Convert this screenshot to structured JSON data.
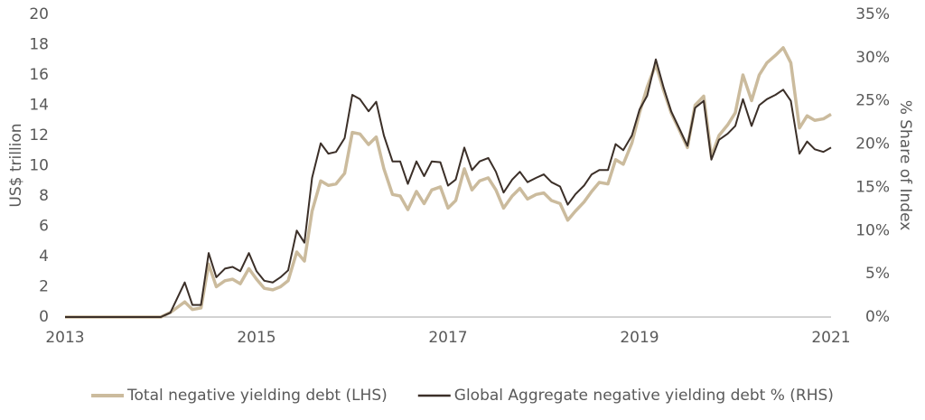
{
  "chart_data": {
    "type": "line",
    "y_label": "US$ trillion",
    "y2_label": "% Share of Index",
    "x": [
      2013,
      2013.5,
      2014,
      2014.1,
      2014.25,
      2014.33,
      2014.42,
      2014.5,
      2014.58,
      2014.67,
      2014.75,
      2014.83,
      2014.92,
      2015,
      2015.08,
      2015.17,
      2015.25,
      2015.33,
      2015.42,
      2015.5,
      2015.58,
      2015.67,
      2015.75,
      2015.83,
      2015.92,
      2016,
      2016.08,
      2016.17,
      2016.25,
      2016.33,
      2016.42,
      2016.5,
      2016.58,
      2016.67,
      2016.75,
      2016.83,
      2016.92,
      2017,
      2017.08,
      2017.17,
      2017.25,
      2017.33,
      2017.42,
      2017.5,
      2017.58,
      2017.67,
      2017.75,
      2017.83,
      2017.92,
      2018,
      2018.08,
      2018.17,
      2018.25,
      2018.33,
      2018.42,
      2018.5,
      2018.58,
      2018.67,
      2018.75,
      2018.83,
      2018.92,
      2019,
      2019.08,
      2019.17,
      2019.25,
      2019.33,
      2019.42,
      2019.5,
      2019.58,
      2019.67,
      2019.75,
      2019.83,
      2019.92,
      2020,
      2020.08,
      2020.17,
      2020.25,
      2020.33,
      2020.42,
      2020.5,
      2020.58,
      2020.67,
      2020.75,
      2020.83,
      2020.92,
      2021
    ],
    "series": [
      {
        "name": "Total negative yielding debt (LHS)",
        "color": "#cbbb9d",
        "values": [
          0,
          0,
          0,
          0.3,
          1.0,
          0.5,
          0.6,
          3.5,
          2.0,
          2.4,
          2.5,
          2.2,
          3.2,
          2.5,
          1.9,
          1.8,
          2.0,
          2.4,
          4.3,
          3.7,
          7.0,
          9.0,
          8.7,
          8.8,
          9.5,
          12.2,
          12.1,
          11.4,
          11.9,
          9.8,
          8.1,
          8.0,
          7.1,
          8.3,
          7.5,
          8.4,
          8.6,
          7.2,
          7.7,
          9.8,
          8.4,
          9.0,
          9.2,
          8.4,
          7.2,
          8.0,
          8.5,
          7.8,
          8.1,
          8.2,
          7.7,
          7.5,
          6.4,
          7.0,
          7.6,
          8.3,
          8.9,
          8.8,
          10.4,
          10.1,
          11.5,
          13.5,
          15.2,
          16.7,
          15.0,
          13.5,
          12.3,
          11.2,
          14.0,
          14.6,
          10.6,
          12.0,
          12.7,
          13.5,
          16.0,
          14.3,
          16.0,
          16.8,
          17.3,
          17.8,
          16.8,
          12.5,
          13.3,
          13.0,
          13.1,
          13.4
        ]
      },
      {
        "name": "Global Aggregate negative yielding debt % (RHS)",
        "color": "#3b2f28",
        "axis": "y2",
        "values": [
          0,
          0,
          0,
          0.5,
          4.0,
          1.4,
          1.4,
          7.4,
          4.6,
          5.6,
          5.8,
          5.3,
          7.4,
          5.3,
          4.2,
          4.0,
          4.6,
          5.4,
          10.0,
          8.6,
          16.1,
          20.1,
          18.9,
          19.1,
          20.7,
          25.7,
          25.2,
          23.8,
          24.9,
          21.0,
          18.0,
          18.0,
          15.4,
          18.0,
          16.3,
          18.0,
          17.9,
          15.2,
          15.9,
          19.6,
          17.0,
          18.0,
          18.4,
          16.8,
          14.4,
          15.9,
          16.8,
          15.6,
          16.1,
          16.5,
          15.6,
          15.1,
          13.0,
          14.2,
          15.2,
          16.5,
          17.0,
          17.0,
          20.0,
          19.3,
          21.0,
          24.0,
          25.6,
          29.8,
          26.6,
          23.8,
          21.7,
          19.8,
          24.2,
          25.0,
          18.2,
          20.5,
          21.2,
          22.1,
          25.2,
          22.1,
          24.5,
          25.2,
          25.7,
          26.3,
          25.0,
          18.9,
          20.3,
          19.4,
          19.1,
          19.6
        ]
      }
    ],
    "xlim": [
      2013,
      2021
    ],
    "xticks": [
      2013,
      2015,
      2017,
      2019,
      2021
    ],
    "ylim": [
      0,
      20
    ],
    "yticks": [
      0,
      2,
      4,
      6,
      8,
      10,
      12,
      14,
      16,
      18,
      20
    ],
    "y2lim": [
      0,
      35
    ],
    "y2ticks": [
      {
        "value": 0,
        "label": "0%"
      },
      {
        "value": 5,
        "label": "5%"
      },
      {
        "value": 10,
        "label": "10%"
      },
      {
        "value": 15,
        "label": "15%"
      },
      {
        "value": 20,
        "label": "20%"
      },
      {
        "value": 25,
        "label": "25%"
      },
      {
        "value": 30,
        "label": "30%"
      },
      {
        "value": 35,
        "label": "35%"
      }
    ],
    "grid": false,
    "legend": "bottom"
  }
}
